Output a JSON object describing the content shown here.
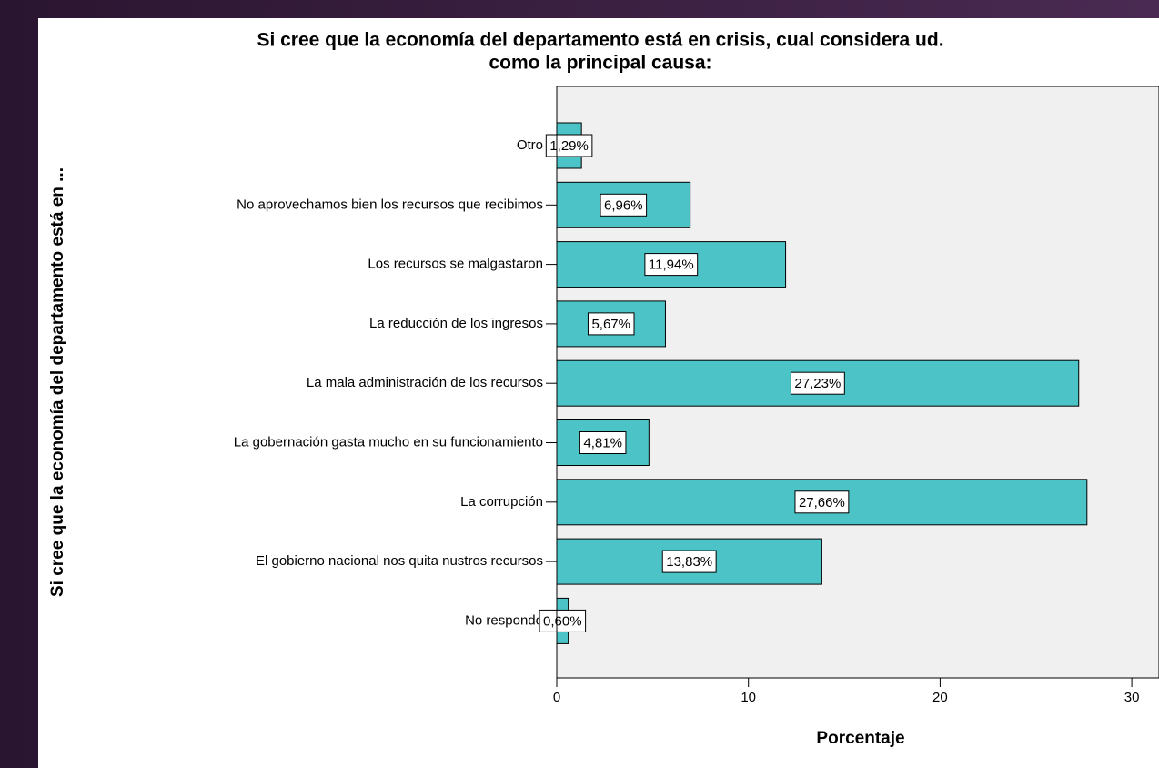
{
  "chart_data": {
    "type": "bar",
    "orientation": "horizontal",
    "title": [
      "Si cree que la economía del departamento está en crisis, cual considera ud.",
      "como la principal causa:"
    ],
    "x_label": "Porcentaje",
    "y_label": "Si cree que la economía del departamento está en ...",
    "categories": [
      "Otro",
      "No aprovechamos bien los recursos que recibimos",
      "Los recursos se malgastaron",
      "La reducción de los ingresos",
      "La mala administración de los recursos",
      "La gobernación gasta mucho en su funcionamiento",
      "La corrupción",
      "El gobierno nacional nos quita nustros recursos",
      "No respondo"
    ],
    "values": [
      1.29,
      6.96,
      11.94,
      5.67,
      27.23,
      4.81,
      27.66,
      13.83,
      0.6
    ],
    "value_labels": [
      "1,29%",
      "6,96%",
      "11,94%",
      "5,67%",
      "27,23%",
      "4,81%",
      "27,66%",
      "13,83%",
      "0,60%"
    ],
    "color": "#4cc3c6",
    "xlim": [
      0,
      31
    ],
    "xticks": [
      0,
      10,
      20,
      30
    ]
  }
}
